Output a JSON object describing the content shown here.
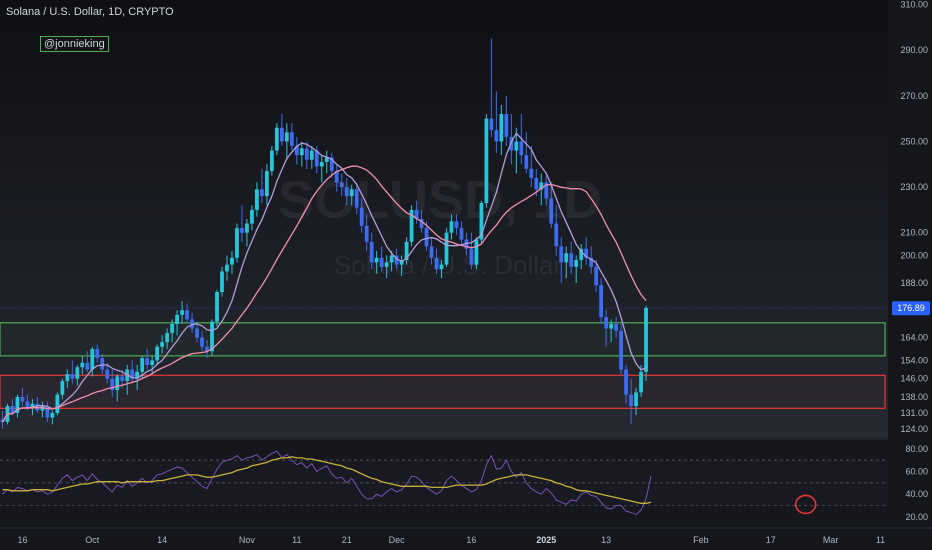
{
  "header": {
    "title": "Solana / U.S. Dollar, 1D, CRYPTO",
    "author": "@jonnieking"
  },
  "watermark": {
    "symbol": "SOLUSD, 1D",
    "name": "Solana / U.S. Dollar"
  },
  "colors": {
    "background": "#14161b",
    "candle_up": "#26c6da",
    "candle_down": "#3d6cf2",
    "ma_fast": "#b39ddb",
    "ma_slow": "#f48fb1",
    "zone_support": "#4caf50",
    "zone_demand": "#e53935",
    "rsi_line": "#7e57c2",
    "rsi_ma": "#c9b23a",
    "price_tag": "#2962ff"
  },
  "chart_data": [
    {
      "type": "candlestick",
      "title": "Solana / U.S. Dollar, 1D, CRYPTO",
      "y_axis_ticks": [
        124,
        131,
        138,
        146,
        154,
        164,
        176,
        188,
        200,
        210,
        230,
        250,
        270,
        290,
        310
      ],
      "y_tick_labels": [
        "124.00",
        "131.00",
        "138.00",
        "146.00",
        "154.00",
        "164.00",
        "176.00",
        "188.00",
        "200.00",
        "210.00",
        "230.00",
        "250.00",
        "270.00",
        "290.00",
        "310.00"
      ],
      "ylim": [
        120,
        312
      ],
      "x_ticks": [
        {
          "label": "16",
          "bar": 4,
          "bold": false
        },
        {
          "label": "Oct",
          "bar": 18,
          "bold": false
        },
        {
          "label": "14",
          "bar": 32,
          "bold": false
        },
        {
          "label": "Nov",
          "bar": 49,
          "bold": false
        },
        {
          "label": "11",
          "bar": 59,
          "bold": false
        },
        {
          "label": "21",
          "bar": 69,
          "bold": false
        },
        {
          "label": "Dec",
          "bar": 79,
          "bold": false
        },
        {
          "label": "16",
          "bar": 94,
          "bold": false
        },
        {
          "label": "2025",
          "bar": 109,
          "bold": true
        },
        {
          "label": "13",
          "bar": 121,
          "bold": false
        },
        {
          "label": "Feb",
          "bar": 140,
          "bold": false
        },
        {
          "label": "17",
          "bar": 154,
          "bold": false
        },
        {
          "label": "Mar",
          "bar": 166,
          "bold": false
        },
        {
          "label": "11",
          "bar": 176,
          "bold": false
        }
      ],
      "last_price": 176.89,
      "last_price_label": "176.89",
      "zones": [
        {
          "name": "support-zone",
          "low": 156,
          "high": 170.5,
          "color": "#4caf50"
        },
        {
          "name": "demand-zone",
          "low": 133,
          "high": 147.5,
          "color": "#e53935"
        }
      ],
      "ohlc": [
        [
          128,
          132,
          124,
          127
        ],
        [
          127,
          135,
          126,
          134
        ],
        [
          134,
          137,
          130,
          131
        ],
        [
          131,
          139,
          129,
          138
        ],
        [
          138,
          142,
          134,
          136
        ],
        [
          136,
          139,
          132,
          133
        ],
        [
          133,
          137,
          130,
          135
        ],
        [
          135,
          138,
          131,
          132
        ],
        [
          132,
          136,
          129,
          134
        ],
        [
          134,
          136,
          127,
          129
        ],
        [
          129,
          132,
          126,
          131
        ],
        [
          131,
          140,
          130,
          139
        ],
        [
          139,
          146,
          137,
          145
        ],
        [
          145,
          150,
          142,
          148
        ],
        [
          148,
          154,
          144,
          146
        ],
        [
          146,
          152,
          143,
          151
        ],
        [
          151,
          156,
          148,
          153
        ],
        [
          153,
          158,
          149,
          150
        ],
        [
          150,
          160,
          147,
          159
        ],
        [
          159,
          161,
          153,
          155
        ],
        [
          155,
          157,
          148,
          150
        ],
        [
          150,
          153,
          144,
          146
        ],
        [
          146,
          150,
          138,
          141
        ],
        [
          141,
          148,
          136,
          147
        ],
        [
          147,
          150,
          142,
          145
        ],
        [
          145,
          152,
          139,
          150
        ],
        [
          150,
          154,
          144,
          146
        ],
        [
          146,
          152,
          141,
          149
        ],
        [
          149,
          156,
          146,
          155
        ],
        [
          155,
          159,
          150,
          152
        ],
        [
          152,
          156,
          148,
          154
        ],
        [
          154,
          161,
          152,
          160
        ],
        [
          160,
          165,
          157,
          162
        ],
        [
          162,
          168,
          159,
          166
        ],
        [
          166,
          172,
          162,
          170
        ],
        [
          170,
          176,
          165,
          174
        ],
        [
          174,
          180,
          170,
          176
        ],
        [
          176,
          179,
          170,
          172
        ],
        [
          172,
          175,
          166,
          168
        ],
        [
          168,
          171,
          162,
          164
        ],
        [
          164,
          167,
          158,
          160
        ],
        [
          160,
          163,
          155,
          158
        ],
        [
          158,
          172,
          156,
          171
        ],
        [
          171,
          185,
          169,
          184
        ],
        [
          184,
          195,
          182,
          193
        ],
        [
          193,
          200,
          189,
          196
        ],
        [
          196,
          202,
          192,
          199
        ],
        [
          199,
          214,
          197,
          212
        ],
        [
          212,
          222,
          206,
          210
        ],
        [
          210,
          216,
          204,
          214
        ],
        [
          214,
          222,
          211,
          220
        ],
        [
          220,
          232,
          217,
          229
        ],
        [
          229,
          238,
          223,
          226
        ],
        [
          226,
          240,
          222,
          237
        ],
        [
          237,
          248,
          235,
          246
        ],
        [
          246,
          258,
          244,
          256
        ],
        [
          256,
          262,
          248,
          250
        ],
        [
          250,
          258,
          242,
          254
        ],
        [
          254,
          258,
          246,
          248
        ],
        [
          248,
          252,
          240,
          244
        ],
        [
          244,
          250,
          239,
          247
        ],
        [
          247,
          250,
          238,
          242
        ],
        [
          242,
          248,
          238,
          246
        ],
        [
          246,
          248,
          236,
          239
        ],
        [
          239,
          244,
          232,
          241
        ],
        [
          241,
          246,
          236,
          243
        ],
        [
          243,
          245,
          234,
          237
        ],
        [
          237,
          240,
          228,
          232
        ],
        [
          232,
          236,
          226,
          230
        ],
        [
          230,
          234,
          222,
          226
        ],
        [
          226,
          231,
          222,
          229
        ],
        [
          229,
          232,
          218,
          221
        ],
        [
          221,
          225,
          210,
          213
        ],
        [
          213,
          218,
          202,
          206
        ],
        [
          206,
          210,
          194,
          197
        ],
        [
          197,
          202,
          192,
          199
        ],
        [
          199,
          204,
          193,
          195
        ],
        [
          195,
          200,
          190,
          197
        ],
        [
          197,
          202,
          193,
          200
        ],
        [
          200,
          203,
          194,
          196
        ],
        [
          196,
          200,
          191,
          198
        ],
        [
          198,
          208,
          196,
          206
        ],
        [
          206,
          222,
          204,
          220
        ],
        [
          220,
          224,
          214,
          216
        ],
        [
          216,
          220,
          210,
          212
        ],
        [
          212,
          215,
          202,
          204
        ],
        [
          204,
          208,
          196,
          199
        ],
        [
          199,
          203,
          192,
          194
        ],
        [
          194,
          198,
          190,
          196
        ],
        [
          196,
          212,
          195,
          210
        ],
        [
          210,
          218,
          207,
          215
        ],
        [
          215,
          218,
          209,
          212
        ],
        [
          212,
          215,
          205,
          207
        ],
        [
          207,
          210,
          200,
          203
        ],
        [
          203,
          210,
          194,
          196
        ],
        [
          196,
          208,
          194,
          207
        ],
        [
          207,
          224,
          205,
          223
        ],
        [
          223,
          262,
          221,
          260
        ],
        [
          260,
          295,
          252,
          255
        ],
        [
          255,
          272,
          245,
          250
        ],
        [
          250,
          266,
          244,
          262
        ],
        [
          262,
          270,
          248,
          252
        ],
        [
          252,
          262,
          240,
          246
        ],
        [
          246,
          256,
          236,
          250
        ],
        [
          250,
          262,
          240,
          244
        ],
        [
          244,
          254,
          236,
          238
        ],
        [
          238,
          248,
          230,
          234
        ],
        [
          234,
          238,
          226,
          229
        ],
        [
          229,
          236,
          222,
          232
        ],
        [
          232,
          236,
          222,
          225
        ],
        [
          225,
          232,
          212,
          214
        ],
        [
          214,
          222,
          200,
          204
        ],
        [
          204,
          208,
          188,
          197
        ],
        [
          197,
          204,
          190,
          201
        ],
        [
          201,
          206,
          192,
          195
        ],
        [
          195,
          200,
          188,
          198
        ],
        [
          198,
          205,
          194,
          203
        ],
        [
          203,
          208,
          196,
          199
        ],
        [
          199,
          204,
          192,
          195
        ],
        [
          195,
          198,
          184,
          187
        ],
        [
          187,
          190,
          170,
          173
        ],
        [
          173,
          176,
          160,
          168
        ],
        [
          168,
          172,
          162,
          170
        ],
        [
          170,
          173,
          164,
          167
        ],
        [
          167,
          170,
          148,
          150
        ],
        [
          150,
          152,
          135,
          139
        ],
        [
          139,
          146,
          126,
          134
        ],
        [
          134,
          142,
          130,
          140
        ],
        [
          140,
          152,
          138,
          149
        ],
        [
          149,
          178,
          145,
          177
        ]
      ],
      "series": [
        {
          "name": "MA fast",
          "style": "line",
          "color": "#b39ddb",
          "period": 7
        },
        {
          "name": "MA slow",
          "style": "line",
          "color": "#f48fb1",
          "period": 21
        }
      ]
    },
    {
      "type": "line",
      "title": "",
      "y_axis_ticks": [
        20,
        40,
        60,
        80
      ],
      "y_tick_labels": [
        "20.00",
        "40.00",
        "60.00",
        "80.00"
      ],
      "ylim": [
        12,
        86
      ],
      "guide_levels": [
        30,
        50,
        70
      ],
      "highlight": {
        "bar": 161,
        "value": 31
      },
      "series": [
        {
          "name": "RSI",
          "color": "#7e57c2",
          "values": [
            40,
            44,
            42,
            46,
            45,
            43,
            44,
            42,
            43,
            40,
            42,
            48,
            54,
            57,
            52,
            55,
            57,
            52,
            58,
            53,
            50,
            46,
            42,
            48,
            46,
            52,
            47,
            50,
            54,
            50,
            52,
            57,
            58,
            60,
            62,
            64,
            63,
            59,
            55,
            51,
            47,
            45,
            54,
            62,
            68,
            70,
            71,
            74,
            70,
            72,
            73,
            75,
            70,
            73,
            76,
            78,
            72,
            75,
            70,
            66,
            68,
            63,
            67,
            60,
            63,
            65,
            58,
            54,
            55,
            50,
            54,
            47,
            40,
            36,
            36,
            40,
            38,
            42,
            45,
            42,
            44,
            49,
            56,
            55,
            51,
            46,
            43,
            40,
            43,
            52,
            56,
            52,
            48,
            45,
            42,
            44,
            52,
            66,
            74,
            62,
            63,
            70,
            60,
            55,
            59,
            50,
            45,
            42,
            40,
            45,
            41,
            35,
            33,
            31,
            35,
            34,
            40,
            42,
            39,
            38,
            33,
            28,
            27,
            30,
            30,
            25,
            24,
            22,
            26,
            36,
            56
          ]
        },
        {
          "name": "RSI-based MA",
          "color": "#c9b23a",
          "values": [
            44,
            44,
            43,
            43,
            43,
            43,
            44,
            44,
            44,
            44,
            43,
            44,
            45,
            46,
            47,
            48,
            49,
            49,
            50,
            51,
            51,
            51,
            51,
            51,
            50,
            51,
            51,
            51,
            51,
            51,
            51,
            52,
            52,
            53,
            54,
            55,
            56,
            57,
            57,
            57,
            56,
            55,
            55,
            56,
            57,
            58,
            59,
            61,
            62,
            63,
            65,
            66,
            67,
            68,
            70,
            71,
            72,
            72,
            73,
            72,
            72,
            71,
            71,
            70,
            69,
            68,
            67,
            66,
            65,
            63,
            62,
            60,
            58,
            56,
            54,
            53,
            51,
            50,
            49,
            48,
            47,
            47,
            47,
            47,
            47,
            47,
            46,
            46,
            46,
            46,
            47,
            48,
            48,
            48,
            48,
            48,
            48,
            49,
            51,
            53,
            54,
            55,
            56,
            57,
            57,
            57,
            56,
            55,
            54,
            53,
            52,
            50,
            49,
            47,
            46,
            44,
            43,
            43,
            42,
            41,
            40,
            39,
            38,
            37,
            36,
            35,
            34,
            33,
            32,
            32,
            33
          ]
        }
      ]
    }
  ]
}
